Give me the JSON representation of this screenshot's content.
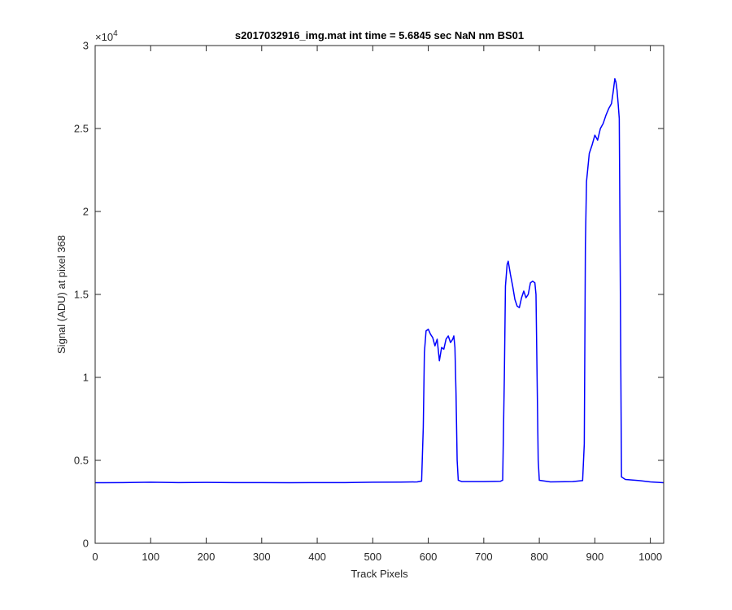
{
  "chart_data": {
    "type": "line",
    "title": "s2017032916_img.mat int time = 5.6845 sec  NaN nm BS01",
    "xlabel": "Track Pixels",
    "ylabel": "Signal (ADU) at pixel 368",
    "xlim": [
      0,
      1024
    ],
    "ylim": [
      0,
      30000
    ],
    "x_ticks": [
      0,
      100,
      200,
      300,
      400,
      500,
      600,
      700,
      800,
      900,
      1000
    ],
    "y_ticks": [
      0,
      5000,
      10000,
      15000,
      20000,
      25000,
      30000
    ],
    "y_tick_labels": [
      "0",
      "0.5",
      "1",
      "1.5",
      "2",
      "2.5",
      "3"
    ],
    "y_exponent": "×10",
    "y_exponent_power": "4",
    "grid": false,
    "series_color": "#0000ff",
    "series": [
      {
        "points": [
          [
            0,
            3650
          ],
          [
            50,
            3660
          ],
          [
            100,
            3680
          ],
          [
            150,
            3660
          ],
          [
            200,
            3670
          ],
          [
            250,
            3660
          ],
          [
            300,
            3660
          ],
          [
            350,
            3650
          ],
          [
            400,
            3660
          ],
          [
            450,
            3660
          ],
          [
            500,
            3680
          ],
          [
            550,
            3690
          ],
          [
            580,
            3700
          ],
          [
            588,
            3750
          ],
          [
            591,
            7000
          ],
          [
            593,
            11500
          ],
          [
            596,
            12800
          ],
          [
            600,
            12900
          ],
          [
            604,
            12600
          ],
          [
            608,
            12400
          ],
          [
            612,
            11900
          ],
          [
            616,
            12300
          ],
          [
            620,
            11000
          ],
          [
            624,
            11800
          ],
          [
            628,
            11700
          ],
          [
            632,
            12300
          ],
          [
            636,
            12500
          ],
          [
            640,
            12100
          ],
          [
            644,
            12300
          ],
          [
            646,
            12500
          ],
          [
            648,
            11800
          ],
          [
            650,
            9000
          ],
          [
            652,
            5000
          ],
          [
            654,
            3800
          ],
          [
            660,
            3720
          ],
          [
            700,
            3720
          ],
          [
            730,
            3740
          ],
          [
            734,
            3800
          ],
          [
            737,
            10000
          ],
          [
            739,
            15500
          ],
          [
            742,
            16800
          ],
          [
            744,
            17000
          ],
          [
            748,
            16200
          ],
          [
            752,
            15500
          ],
          [
            756,
            14700
          ],
          [
            760,
            14300
          ],
          [
            764,
            14200
          ],
          [
            768,
            14800
          ],
          [
            772,
            15200
          ],
          [
            776,
            14800
          ],
          [
            780,
            15000
          ],
          [
            784,
            15700
          ],
          [
            788,
            15800
          ],
          [
            792,
            15700
          ],
          [
            794,
            15000
          ],
          [
            796,
            10000
          ],
          [
            798,
            5000
          ],
          [
            800,
            3800
          ],
          [
            820,
            3700
          ],
          [
            860,
            3720
          ],
          [
            878,
            3780
          ],
          [
            881,
            6000
          ],
          [
            883,
            18000
          ],
          [
            885,
            21800
          ],
          [
            890,
            23500
          ],
          [
            895,
            24000
          ],
          [
            900,
            24600
          ],
          [
            905,
            24300
          ],
          [
            910,
            25000
          ],
          [
            915,
            25300
          ],
          [
            920,
            25800
          ],
          [
            925,
            26200
          ],
          [
            930,
            26500
          ],
          [
            933,
            27200
          ],
          [
            936,
            28000
          ],
          [
            938,
            27800
          ],
          [
            940,
            27300
          ],
          [
            942,
            26500
          ],
          [
            944,
            25600
          ],
          [
            946,
            15000
          ],
          [
            948,
            4000
          ],
          [
            955,
            3850
          ],
          [
            980,
            3780
          ],
          [
            1000,
            3700
          ],
          [
            1024,
            3650
          ]
        ]
      }
    ]
  }
}
